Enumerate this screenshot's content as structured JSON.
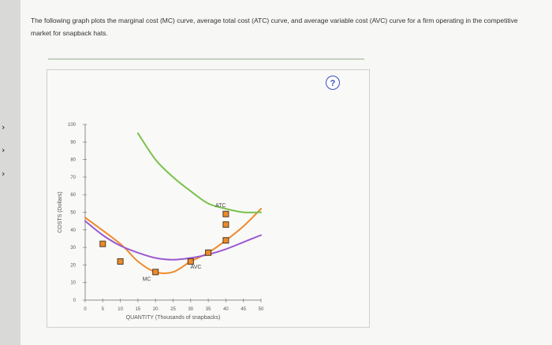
{
  "prompt": {
    "text": "The following graph plots the marginal cost (MC) curve, average total cost (ATC) curve, and average variable cost (AVC) curve for a firm operating in the competitive market for snapback hats."
  },
  "help": {
    "label": "?"
  },
  "chart_data": {
    "type": "line",
    "xlabel": "QUANTITY (Thousands of snapbacks)",
    "ylabel": "COSTS (Dollars)",
    "xlim": [
      0,
      50
    ],
    "ylim": [
      0,
      100
    ],
    "x_ticks": [
      0,
      5,
      10,
      15,
      20,
      25,
      30,
      35,
      40,
      45,
      50
    ],
    "y_ticks": [
      0,
      10,
      20,
      30,
      40,
      50,
      60,
      70,
      80,
      90,
      100
    ],
    "grid": false,
    "series": [
      {
        "name": "MC",
        "color": "#ef8a2b",
        "marker": "square",
        "x": [
          0,
          10,
          15,
          20,
          25,
          30,
          35,
          40,
          45,
          50
        ],
        "y": [
          47,
          32,
          22,
          16,
          16,
          22,
          27,
          34,
          42,
          52
        ]
      },
      {
        "name": "ATC",
        "color": "#79c24a",
        "x": [
          15,
          20,
          25,
          30,
          35,
          40,
          45,
          50
        ],
        "y": [
          95,
          80,
          70,
          62,
          55,
          52,
          50,
          50
        ]
      },
      {
        "name": "AVC",
        "color": "#9b59d0",
        "x": [
          0,
          5,
          10,
          15,
          20,
          25,
          30,
          35,
          40,
          45,
          50
        ],
        "y": [
          45,
          37,
          31,
          27,
          24,
          23,
          24,
          26,
          29,
          33,
          37
        ]
      }
    ],
    "marked_points": [
      {
        "series": "MC",
        "x": 5,
        "y": 32
      },
      {
        "series": "MC",
        "x": 10,
        "y": 22
      },
      {
        "series": "MC",
        "x": 20,
        "y": 16
      },
      {
        "series": "MC",
        "x": 30,
        "y": 22
      },
      {
        "series": "MC",
        "x": 35,
        "y": 27
      },
      {
        "series": "MC",
        "x": 40,
        "y": 34
      },
      {
        "series": "MC",
        "x": 40,
        "y": 43
      },
      {
        "series": "MC",
        "x": 40,
        "y": 49
      }
    ]
  }
}
